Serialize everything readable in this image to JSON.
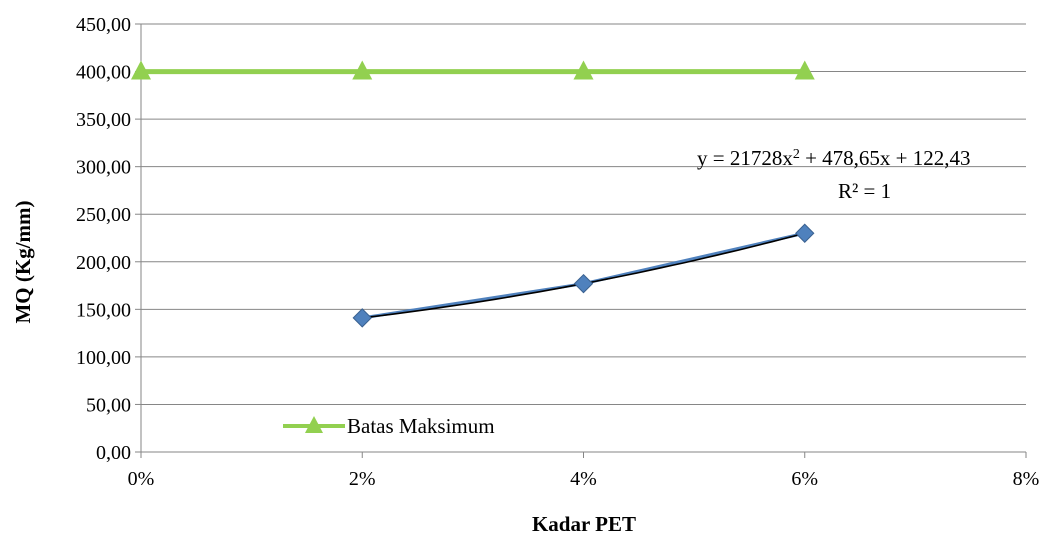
{
  "chart_data": {
    "type": "line",
    "x_unit": "percent",
    "x": [
      0,
      2,
      4,
      6
    ],
    "xlim": [
      0,
      8
    ],
    "x_ticks": [
      "0%",
      "2%",
      "4%",
      "6%",
      "8%"
    ],
    "ylim": [
      0,
      450
    ],
    "y_ticks": [
      "0,00",
      "50,00",
      "100,00",
      "150,00",
      "200,00",
      "250,00",
      "300,00",
      "350,00",
      "400,00",
      "450,00"
    ],
    "xlabel": "Kadar PET",
    "ylabel": "MQ (Kg/mm)",
    "grid": true,
    "legend_position": "bottom-left",
    "series": [
      {
        "name": "Batas Maksimum",
        "marker": "triangle",
        "color": "#92D050",
        "points": [
          [
            0,
            400
          ],
          [
            2,
            400
          ],
          [
            4,
            400
          ],
          [
            6,
            400
          ]
        ]
      },
      {
        "name": "",
        "marker": "diamond",
        "color": "#4F81BD",
        "points": [
          [
            2,
            141
          ],
          [
            4,
            177
          ],
          [
            6,
            230
          ]
        ]
      }
    ],
    "trendline": {
      "type": "polynomial",
      "color": "#000000",
      "equation_parts": [
        "y = 21728x",
        "2",
        " + 478,65x + 122,43"
      ],
      "r_squared": "R² = 1"
    }
  }
}
